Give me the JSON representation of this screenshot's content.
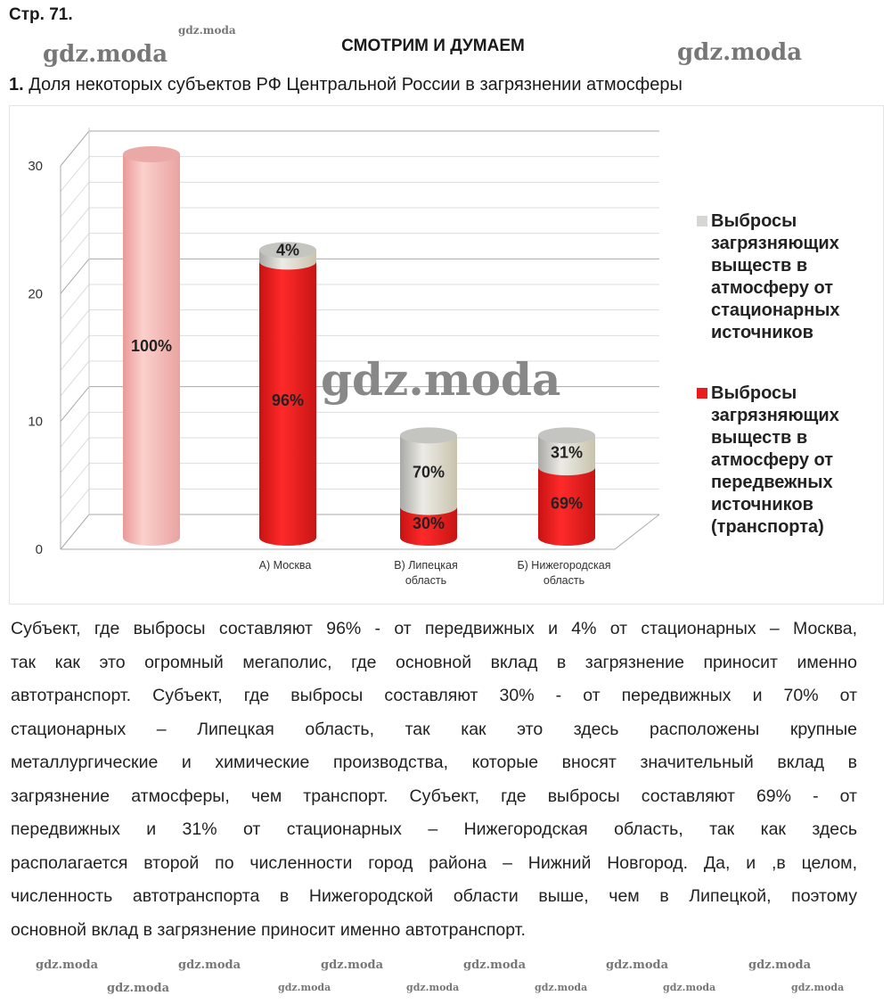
{
  "header": {
    "page": "Стр. 71.",
    "section": "СМОТРИМ И ДУМАЕМ",
    "task_number": "1.",
    "task_title": "Доля некоторых субъектов РФ Центральной России в загрязнении атмосферы"
  },
  "watermark": "gdz.moda",
  "chart_data": {
    "type": "bar",
    "style": "3d-stacked-cylinder",
    "categories": [
      "",
      "А) Москва",
      "В) Липецкая область",
      "Б) Нижегородская область"
    ],
    "ylim": [
      0,
      30
    ],
    "yticks": [
      "0",
      "10",
      "20",
      "30"
    ],
    "grid": true,
    "legend_position": "right",
    "total_bar": {
      "value": 30,
      "label": "100%",
      "color": "#f4b6b2"
    },
    "series": [
      {
        "name": "Выбросы загрязняющих выществ в атмосферу от передвежных источников (транспорта)",
        "color": "#e81c1c",
        "values": [
          null,
          21.6,
          2.4,
          5.5
        ],
        "labels": [
          "",
          "96%",
          "30%",
          "69%"
        ]
      },
      {
        "name": "Выбросы загрязняющих выществ в атмосферу от стационарных источников",
        "color": "#d6d6d2",
        "values": [
          null,
          0.9,
          5.6,
          2.5
        ],
        "labels": [
          "",
          "4%",
          "70%",
          "31%"
        ]
      }
    ],
    "legend": [
      {
        "lines": [
          "Выбросы",
          "загрязняющих",
          "выществ в",
          "атмосферу от",
          "стационарных",
          "источников"
        ],
        "color": "#d6d6d2"
      },
      {
        "lines": [
          "Выбросы",
          "загрязняющих",
          "выществ в",
          "атмосферу от",
          "передвежных",
          "источников",
          "(транспорта)"
        ],
        "color": "#e81c1c"
      }
    ]
  },
  "answer_lines": [
    "Субъект, где выбросы составляют 96% - от передвижных и 4% от стационарных – Москва,",
    "так как это огромный мегаполис, где основной вклад в загрязнение приносит именно",
    "автотранспорт. Субъект, где выбросы составляют 30% - от передвижных и 70% от",
    "стационарных – Липецкая область, так как это здесь расположены крупные",
    "металлургические и химические производства, которые вносят значительный вклад в",
    "загрязнение атмосферы, чем транспорт. Субъект, где выбросы составляют 69% - от",
    "передвижных и 31% от стационарных – Нижегородская область, так как здесь",
    "располагается второй по численности город района – Нижний Новгород. Да, и ,в целом,",
    "численность автотранспорта в Нижегородской области выше, чем в Липецкой, поэтому",
    "основной вклад в загрязнение приносит именно автотранспорт."
  ]
}
